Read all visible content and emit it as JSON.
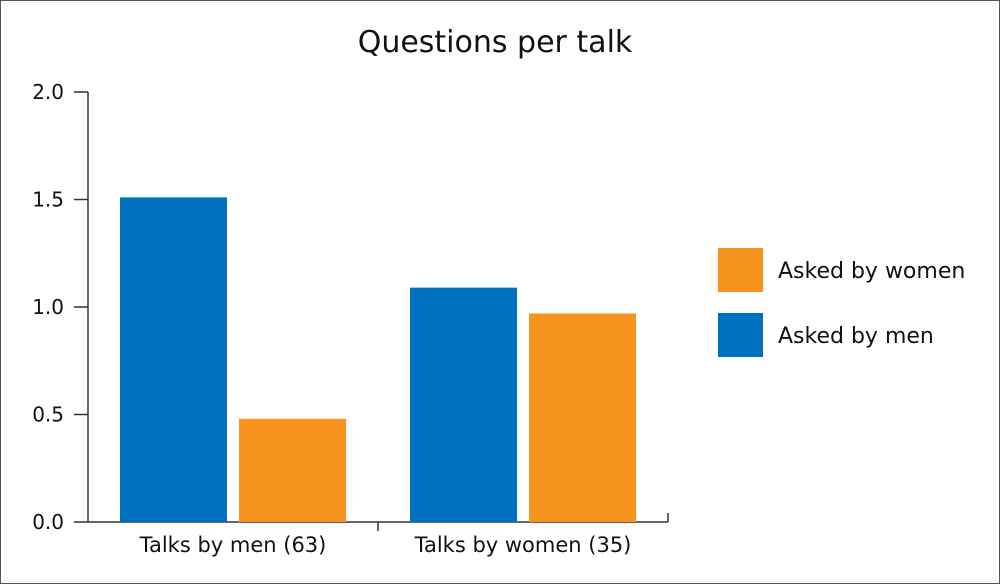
{
  "chart_data": {
    "type": "bar",
    "title": "Questions per talk",
    "xlabel": "",
    "ylabel": "",
    "categories": [
      "Talks by men (63)",
      "Talks by women (35)"
    ],
    "series": [
      {
        "name": "Asked by men",
        "values": [
          1.51,
          1.09
        ],
        "color": "#0070c0"
      },
      {
        "name": "Asked by women",
        "values": [
          0.48,
          0.97
        ],
        "color": "#f7941d"
      }
    ],
    "ylim": [
      0,
      2.0
    ],
    "yticks": [
      "0.0",
      "0.5",
      "1.0",
      "1.5",
      "2.0"
    ],
    "grid": false,
    "legend_position": "right",
    "legend_order": [
      "Asked by women",
      "Asked by men"
    ]
  }
}
